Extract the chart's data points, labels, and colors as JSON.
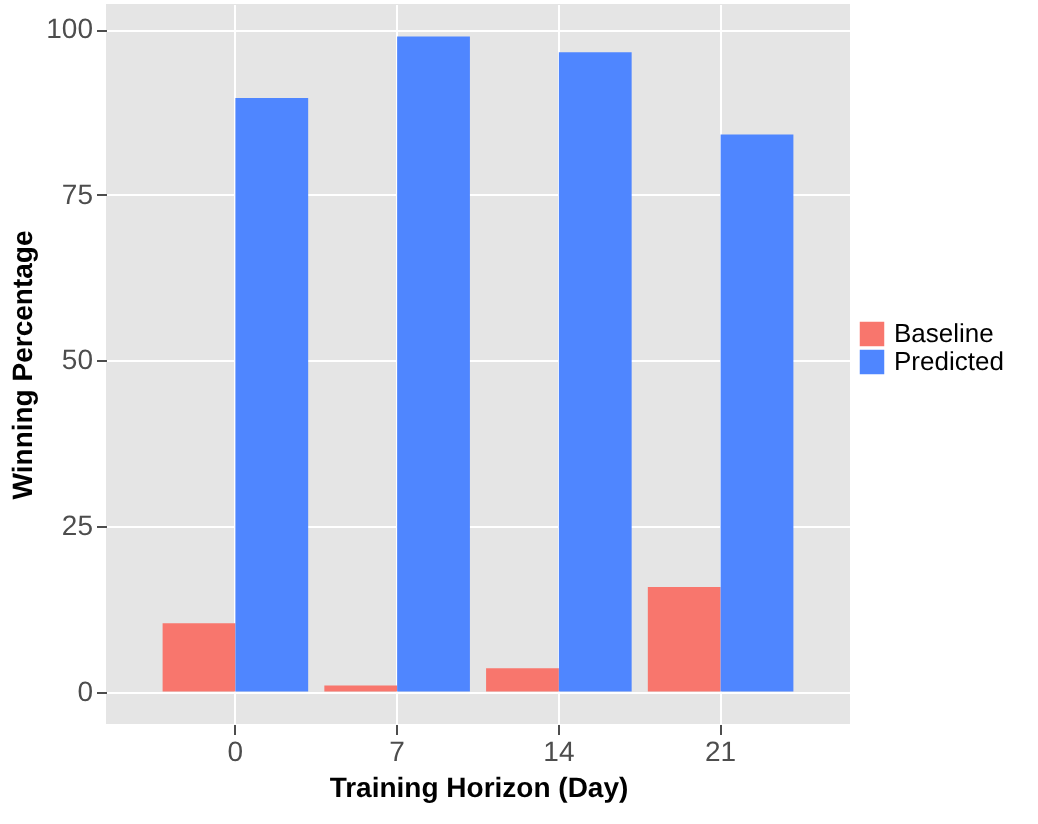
{
  "chart_data": {
    "type": "bar",
    "xlabel": "Training Horizon (Day)",
    "ylabel": "Winning Percentage",
    "categories": [
      "0",
      "7",
      "14",
      "21"
    ],
    "series": [
      {
        "name": "Baseline",
        "color": "#f8766d",
        "values": [
          10.3,
          0.9,
          3.5,
          15.8
        ]
      },
      {
        "name": "Predicted",
        "color": "#4f86ff",
        "values": [
          89.6,
          98.9,
          96.5,
          84.1
        ]
      }
    ],
    "ylim": [
      -4.9,
      103.8
    ],
    "yticks": [
      0,
      25,
      50,
      75,
      100
    ],
    "grid": true,
    "legend": "right"
  }
}
